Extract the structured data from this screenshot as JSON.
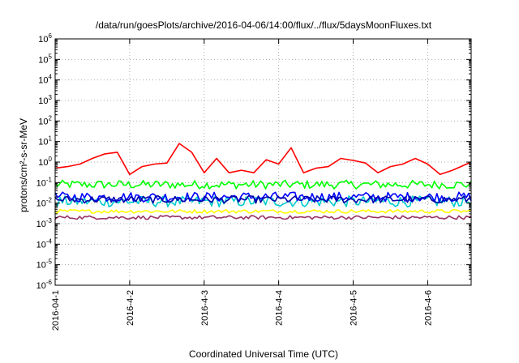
{
  "chart_data": {
    "type": "line",
    "title": "/data/run/goesPlots/archive/2016-04-06/14:00/flux/../flux/5daysMoonFluxes.txt",
    "xlabel": "Coordinated Universal Time (UTC)",
    "ylabel": "protons/cm²-s-sr-MeV",
    "yscale": "log",
    "ylim": [
      1e-06,
      1000000.0
    ],
    "xlim": [
      "2016-04-01",
      "2016-04-06 14:00"
    ],
    "x_ticks": [
      "2016-04-1",
      "2016-4-2",
      "2016-4-3",
      "2016-4-4",
      "2016-4-5",
      "2016-4-6"
    ],
    "y_ticks": [
      "10-6",
      "10-5",
      "10-4",
      "10-3",
      "10-2",
      "10-1",
      "100",
      "101",
      "102",
      "103",
      "104",
      "105",
      "106"
    ],
    "grid": true,
    "legend": "none",
    "series": [
      {
        "color": "#ff0000",
        "x": [
          "2016-04-01",
          "2016-04-01 04:00",
          "2016-04-01 08:00",
          "2016-04-01 12:00",
          "2016-04-01 16:00",
          "2016-04-01 20:00",
          "2016-04-02",
          "2016-04-02 04:00",
          "2016-04-02 08:00",
          "2016-04-02 12:00",
          "2016-04-02 16:00",
          "2016-04-02 20:00",
          "2016-04-03",
          "2016-04-03 04:00",
          "2016-04-03 08:00",
          "2016-04-03 12:00",
          "2016-04-03 16:00",
          "2016-04-03 20:00",
          "2016-04-04",
          "2016-04-04 04:00",
          "2016-04-04 08:00",
          "2016-04-04 12:00",
          "2016-04-04 16:00",
          "2016-04-04 20:00",
          "2016-04-05",
          "2016-04-05 04:00",
          "2016-04-05 08:00",
          "2016-04-05 12:00",
          "2016-04-05 16:00",
          "2016-04-05 20:00",
          "2016-04-06",
          "2016-04-06 04:00",
          "2016-04-06 08:00",
          "2016-04-06 14:00"
        ],
        "values": [
          0.5,
          0.6,
          0.8,
          1.5,
          2.5,
          3,
          0.25,
          0.6,
          0.8,
          0.9,
          8,
          3,
          0.3,
          1.5,
          0.3,
          0.4,
          0.3,
          1.3,
          0.8,
          5,
          0.3,
          0.5,
          0.6,
          1.5,
          1.2,
          0.9,
          0.3,
          0.6,
          0.8,
          1.5,
          0.8,
          0.25,
          0.4,
          1.0
        ]
      },
      {
        "color": "#00ff00",
        "base": 0.08,
        "spread": 0.35
      },
      {
        "color": "#00cccc",
        "base": 0.012,
        "spread": 0.45
      },
      {
        "color": "#0000ff",
        "base": 0.02,
        "spread": 0.4
      },
      {
        "color": "#0000aa",
        "base": 0.015,
        "spread": 0.3
      },
      {
        "color": "#ffff00",
        "base": 0.004,
        "spread": 0.15
      },
      {
        "color": "#993366",
        "base": 0.002,
        "spread": 0.15
      }
    ]
  }
}
